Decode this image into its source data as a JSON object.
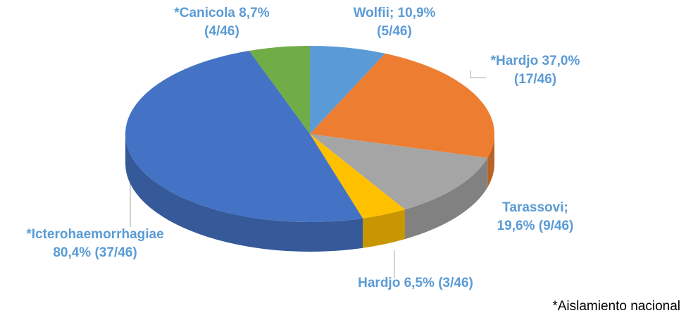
{
  "chart_data": {
    "type": "pie3d",
    "categories": [
      "Wolfii;",
      "*Hardjo",
      "Tarassovi;",
      "Hardjo",
      "*Icterohaemorrhagiae",
      "*Canicola"
    ],
    "values": [
      10.9,
      37.0,
      19.6,
      6.5,
      80.4,
      8.7
    ],
    "value_labels": [
      "10,9%",
      "37,0%",
      "19,6%",
      "6,5%",
      "80,4%",
      "8,7%"
    ],
    "counts": [
      "(5/46)",
      "(17/46)",
      "(9/46)",
      "(3/46)",
      "(37/46)",
      "(4/46)"
    ],
    "colors": [
      "#5b9bd5",
      "#ed7d31",
      "#a5a5a5",
      "#ffc000",
      "#4472c4",
      "#70ad47"
    ],
    "note": "*Aislamiento nacional"
  }
}
